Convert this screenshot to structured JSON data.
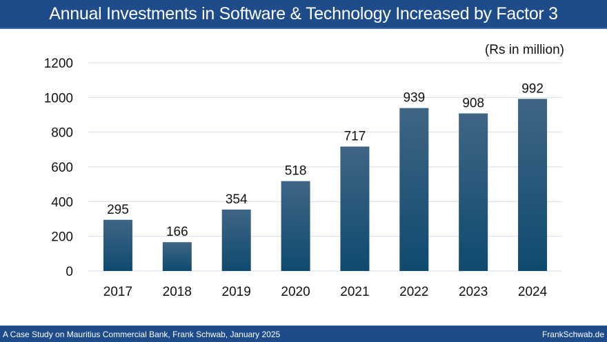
{
  "title": "Annual Investments in Software & Technology Increased by Factor 3",
  "footer": {
    "left": "A Case Study on Mauritius Commercial Bank, Frank Schwab, January 2025",
    "right": "FrankSchwab.de"
  },
  "colors": {
    "header": "#1e4c8a",
    "bar_top": "#3f6585",
    "bar_bottom": "#0f4a6e",
    "grid": "#d4dcea"
  },
  "chart_data": {
    "type": "bar",
    "title": "Annual Investments in Software & Technology Increased by Factor 3",
    "unit_label": "(Rs in million)",
    "categories": [
      "2017",
      "2018",
      "2019",
      "2020",
      "2021",
      "2022",
      "2023",
      "2024"
    ],
    "values": [
      295,
      166,
      354,
      518,
      717,
      939,
      908,
      992
    ],
    "ylim": [
      0,
      1200
    ],
    "yticks": [
      0,
      200,
      400,
      600,
      800,
      1000,
      1200
    ],
    "grid": true,
    "data_labels": true
  }
}
